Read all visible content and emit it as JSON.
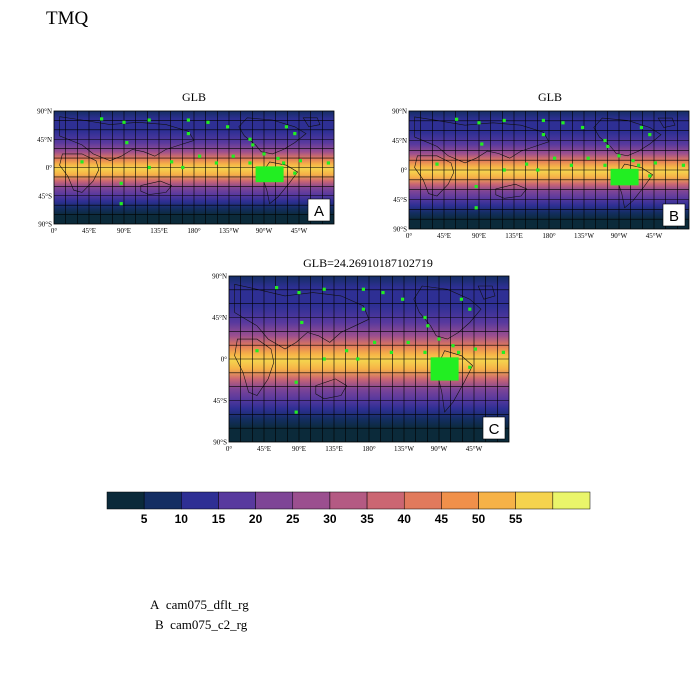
{
  "title": "TMQ",
  "panels": [
    {
      "id": "A",
      "title": "GLB",
      "label": "A"
    },
    {
      "id": "B",
      "title": "GLB",
      "label": "B"
    },
    {
      "id": "C",
      "title": "GLB=24.26910187102719",
      "label": "C"
    }
  ],
  "axes": {
    "lat_labels": [
      "90°N",
      "45°N",
      "0°",
      "45°S",
      "90°S"
    ],
    "lon_labels": [
      "0°",
      "45°E",
      "90°E",
      "135°E",
      "180°",
      "135°W",
      "90°W",
      "45°W"
    ]
  },
  "colorbar": {
    "colors": [
      "#0b2a3a",
      "#142e63",
      "#2e2f94",
      "#58399e",
      "#7e4596",
      "#9b4f8f",
      "#b45a83",
      "#cb6672",
      "#e17a5c",
      "#f0904a",
      "#f6b247",
      "#f5d34e",
      "#eaf56a"
    ],
    "labels": [
      "5",
      "10",
      "15",
      "20",
      "25",
      "30",
      "35",
      "40",
      "45",
      "50",
      "55"
    ]
  },
  "legend": [
    {
      "letter": "A",
      "name": "cam075_dflt_rg"
    },
    {
      "letter": "B",
      "name": "cam075_c2_rg"
    }
  ],
  "colors": {
    "marker": "#22ee22",
    "grid": "#000000"
  }
}
